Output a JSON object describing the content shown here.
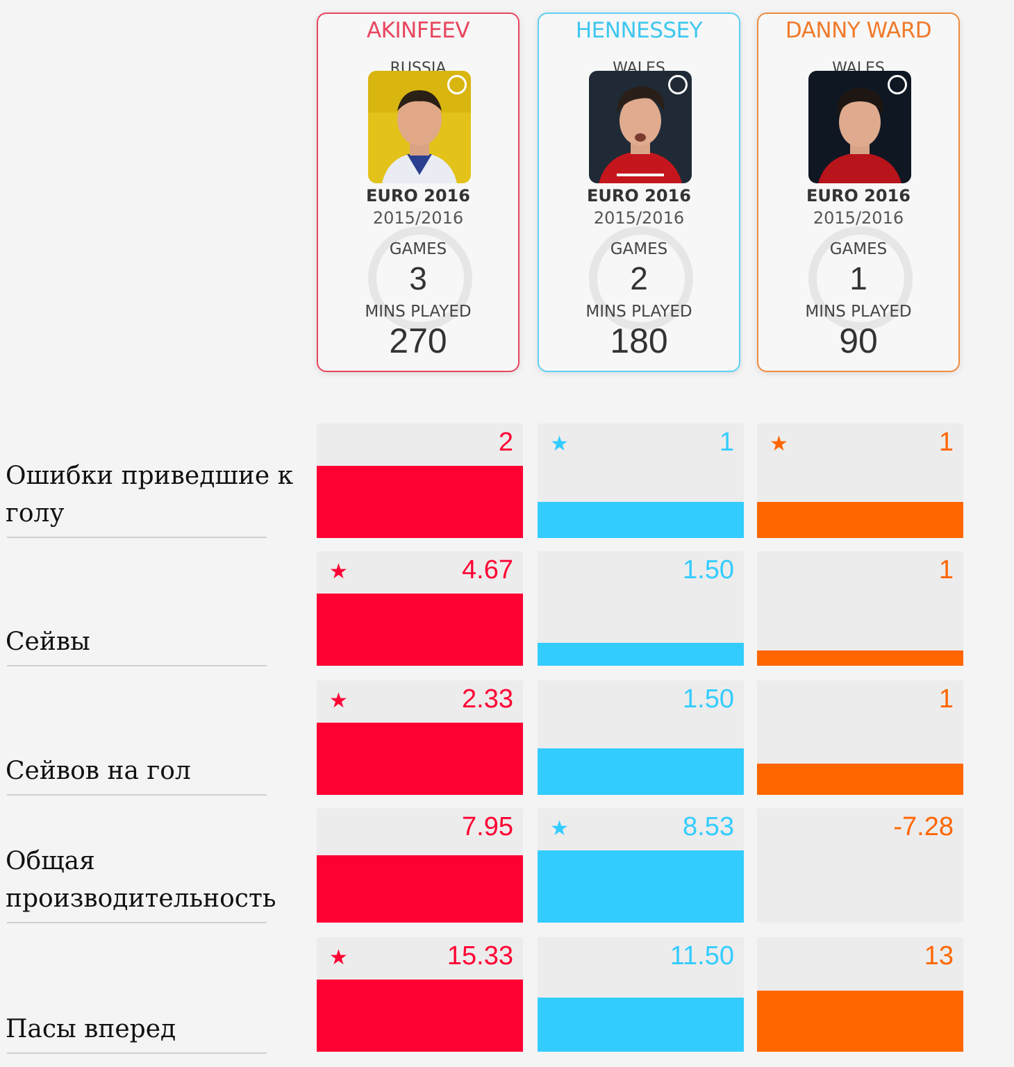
{
  "colors": {
    "akinfeev": "#ff0033",
    "hennessey": "#33ccff",
    "ward": "#ff6600"
  },
  "players": [
    {
      "name": "AKINFEEV",
      "country": "RUSSIA",
      "competition": "EURO 2016",
      "season": "2015/2016",
      "games_label": "GAMES",
      "games": "3",
      "mins_label": "MINS PLAYED",
      "mins": "270"
    },
    {
      "name": "HENNESSEY",
      "country": "WALES",
      "competition": "EURO 2016",
      "season": "2015/2016",
      "games_label": "GAMES",
      "games": "2",
      "mins_label": "MINS PLAYED",
      "mins": "180"
    },
    {
      "name": "DANNY WARD",
      "country": "WALES",
      "competition": "EURO 2016",
      "season": "2015/2016",
      "games_label": "GAMES",
      "games": "1",
      "mins_label": "MINS PLAYED",
      "mins": "90"
    }
  ],
  "metrics": [
    {
      "label": "Ошибки приведшие к голу",
      "values": [
        "2",
        "1",
        "1"
      ],
      "fill": [
        1.0,
        0.5,
        0.5
      ],
      "star": [
        false,
        true,
        true
      ]
    },
    {
      "label": "Сейвы",
      "values": [
        "4.67",
        "1.50",
        "1"
      ],
      "fill": [
        1.0,
        0.32,
        0.21
      ],
      "star": [
        true,
        false,
        false
      ]
    },
    {
      "label": "Сейвов на гол",
      "values": [
        "2.33",
        "1.50",
        "1"
      ],
      "fill": [
        1.0,
        0.64,
        0.43
      ],
      "star": [
        true,
        false,
        false
      ]
    },
    {
      "label": "Общая производительность",
      "values": [
        "7.95",
        "8.53",
        "-7.28"
      ],
      "fill": [
        0.93,
        1.0,
        0.0
      ],
      "star": [
        false,
        true,
        false
      ]
    },
    {
      "label": "Пасы вперед",
      "values": [
        "15.33",
        "11.50",
        "13"
      ],
      "fill": [
        1.0,
        0.75,
        0.85
      ],
      "star": [
        true,
        false,
        false
      ]
    }
  ],
  "star_glyph": "★"
}
